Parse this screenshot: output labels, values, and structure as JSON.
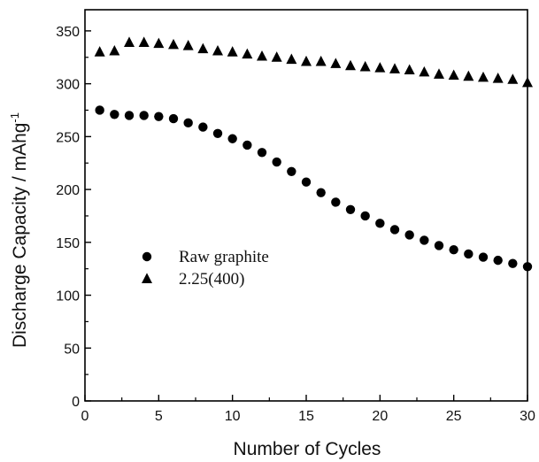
{
  "chart_data": {
    "type": "scatter",
    "xlabel": "Number of Cycles",
    "ylabel": "Discharge Capacity / mAhg",
    "ylabel_superscript": "-1",
    "xlim": [
      0,
      30
    ],
    "ylim": [
      0,
      370
    ],
    "xticks": [
      0,
      5,
      10,
      15,
      20,
      25,
      30
    ],
    "yticks": [
      0,
      50,
      100,
      150,
      200,
      250,
      300,
      350
    ],
    "grid": false,
    "legend_placement": "center-left",
    "series": [
      {
        "name": "Raw graphite",
        "marker": "circle",
        "color": "#000000",
        "x": [
          1,
          2,
          3,
          4,
          5,
          6,
          7,
          8,
          9,
          10,
          11,
          12,
          13,
          14,
          15,
          16,
          17,
          18,
          19,
          20,
          21,
          22,
          23,
          24,
          25,
          26,
          27,
          28,
          29,
          30
        ],
        "y": [
          275,
          271,
          270,
          270,
          269,
          267,
          263,
          259,
          253,
          248,
          242,
          235,
          226,
          217,
          207,
          197,
          188,
          181,
          175,
          168,
          162,
          157,
          152,
          147,
          143,
          139,
          136,
          133,
          130,
          127
        ]
      },
      {
        "name": "2.25(400)",
        "marker": "triangle",
        "color": "#000000",
        "x": [
          1,
          2,
          3,
          4,
          5,
          6,
          7,
          8,
          9,
          10,
          11,
          12,
          13,
          14,
          15,
          16,
          17,
          18,
          19,
          20,
          21,
          22,
          23,
          24,
          25,
          26,
          27,
          28,
          29,
          30
        ],
        "y": [
          330,
          331,
          339,
          339,
          338,
          337,
          336,
          333,
          331,
          330,
          328,
          326,
          325,
          323,
          321,
          321,
          319,
          317,
          316,
          315,
          314,
          313,
          311,
          309,
          308,
          307,
          306,
          305,
          304,
          301
        ]
      }
    ]
  }
}
